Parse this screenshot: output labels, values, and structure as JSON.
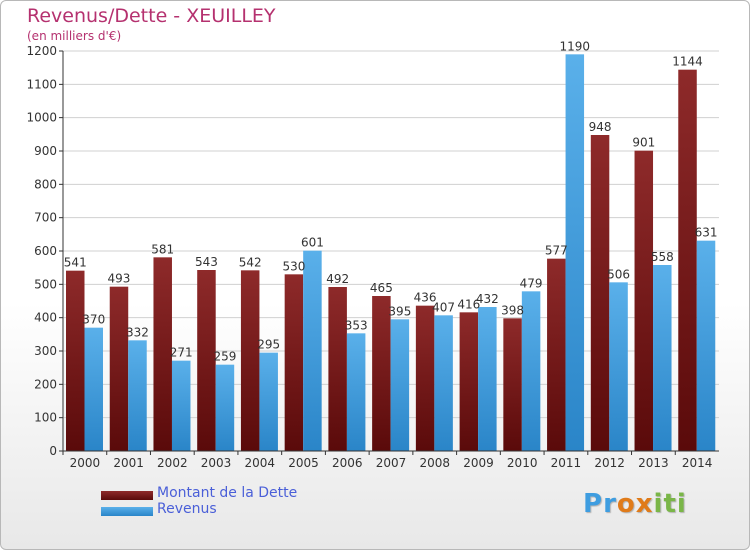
{
  "title": "Revenus/Dette - XEUILLEY",
  "subtitle": "(en milliers d'€)",
  "colors": {
    "dette": "#7a1c1c",
    "revenus": "#3e9de0",
    "text_accent": "#b5316f",
    "legend_text": "#4a5fd8"
  },
  "chart_data": {
    "type": "bar",
    "title": "Revenus/Dette - XEUILLEY",
    "subtitle": "(en milliers d'€)",
    "categories": [
      "2000",
      "2001",
      "2002",
      "2003",
      "2004",
      "2005",
      "2006",
      "2007",
      "2008",
      "2009",
      "2010",
      "2011",
      "2012",
      "2013",
      "2014"
    ],
    "series": [
      {
        "name": "Montant de la Dette",
        "values": [
          541,
          493,
          581,
          543,
          542,
          530,
          492,
          465,
          436,
          416,
          398,
          577,
          948,
          901,
          1144
        ]
      },
      {
        "name": "Revenus",
        "values": [
          370,
          332,
          271,
          259,
          295,
          601,
          353,
          395,
          407,
          432,
          479,
          1190,
          506,
          558,
          631
        ]
      }
    ],
    "ylim": [
      0,
      1200
    ],
    "yticks": [
      0,
      100,
      200,
      300,
      400,
      500,
      600,
      700,
      800,
      900,
      1000,
      1100,
      1200
    ],
    "grid": true,
    "legend": "bottom-left"
  },
  "legend": [
    {
      "label": "Montant de la Dette"
    },
    {
      "label": "Revenus"
    }
  ],
  "logo": {
    "letters": [
      "P",
      "r",
      "o",
      "x",
      "i",
      "t",
      "i"
    ],
    "colors": [
      "#3e9de0",
      "#3e9de0",
      "#e07b1a",
      "#e07b1a",
      "#7ab648",
      "#7ab648",
      "#7ab648"
    ]
  }
}
